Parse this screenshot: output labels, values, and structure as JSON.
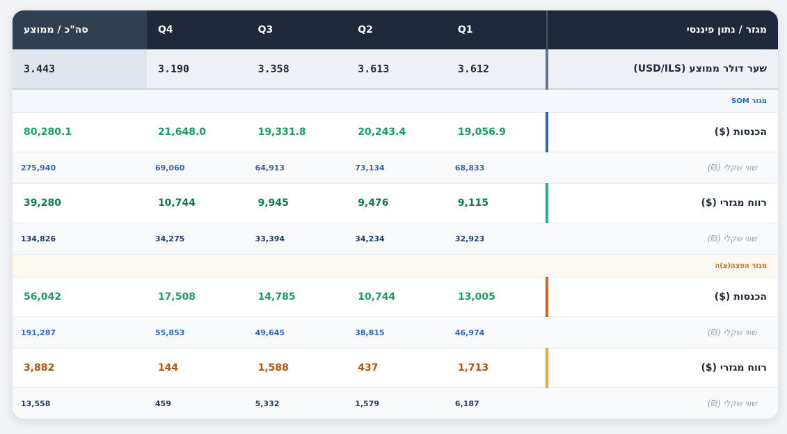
{
  "header": {
    "label_col": "מגזר / נתון פיננסי",
    "quarters": [
      "Q1",
      "Q2",
      "Q3",
      "Q4"
    ],
    "total_col": "סה\"כ / ממוצע"
  },
  "fx": {
    "label": "שער דולר ממוצע (USD/ILS)",
    "values": [
      "3.612",
      "3.613",
      "3.358",
      "3.190"
    ],
    "total": "3.443"
  },
  "som": {
    "title": "מגזר SOM",
    "revenue": {
      "label": "הכנסות ($)",
      "values": [
        "19,056.9",
        "20,243.4",
        "19,331.8",
        "21,648.0"
      ],
      "total": "80,280.1",
      "ils_label": "שווי שקלי (₪)",
      "ils_values": [
        "68,833",
        "73,134",
        "64,913",
        "69,060"
      ],
      "ils_total": "275,940"
    },
    "profit": {
      "label": "רווח מגזרי ($)",
      "values": [
        "9,115",
        "9,476",
        "9,945",
        "10,744"
      ],
      "total": "39,280",
      "ils_label": "שווי שקלי (₪)",
      "ils_values": [
        "32,923",
        "34,234",
        "33,394",
        "34,275"
      ],
      "ils_total": "134,826"
    }
  },
  "dist": {
    "title": "מגזר הפצה(צ)ה",
    "revenue": {
      "label": "הכנסות ($)",
      "values": [
        "13,005",
        "10,744",
        "14,785",
        "17,508"
      ],
      "total": "56,042",
      "ils_label": "שווי שקלי (₪)",
      "ils_values": [
        "46,974",
        "38,815",
        "49,645",
        "55,853"
      ],
      "ils_total": "191,287"
    },
    "profit": {
      "label": "רווח מגזרי ($)",
      "values": [
        "1,713",
        "437",
        "1,588",
        "144"
      ],
      "total": "3,882",
      "ils_label": "שווי שקלי (₪)",
      "ils_values": [
        "6,187",
        "1,579",
        "5,332",
        "459"
      ],
      "ils_total": "13,558"
    }
  },
  "colors": {
    "header_bg": "#1e293b",
    "green": "#16a05e",
    "dark_green": "#0f7a4a",
    "blue_text": "#2d64c8",
    "navy_text": "#1e3a6e",
    "amber_text": "#b45309",
    "bar_blue": "#2d64c8",
    "bar_teal": "#21b58b",
    "bar_orange": "#d9621c",
    "bar_amber": "#f0a82a"
  }
}
